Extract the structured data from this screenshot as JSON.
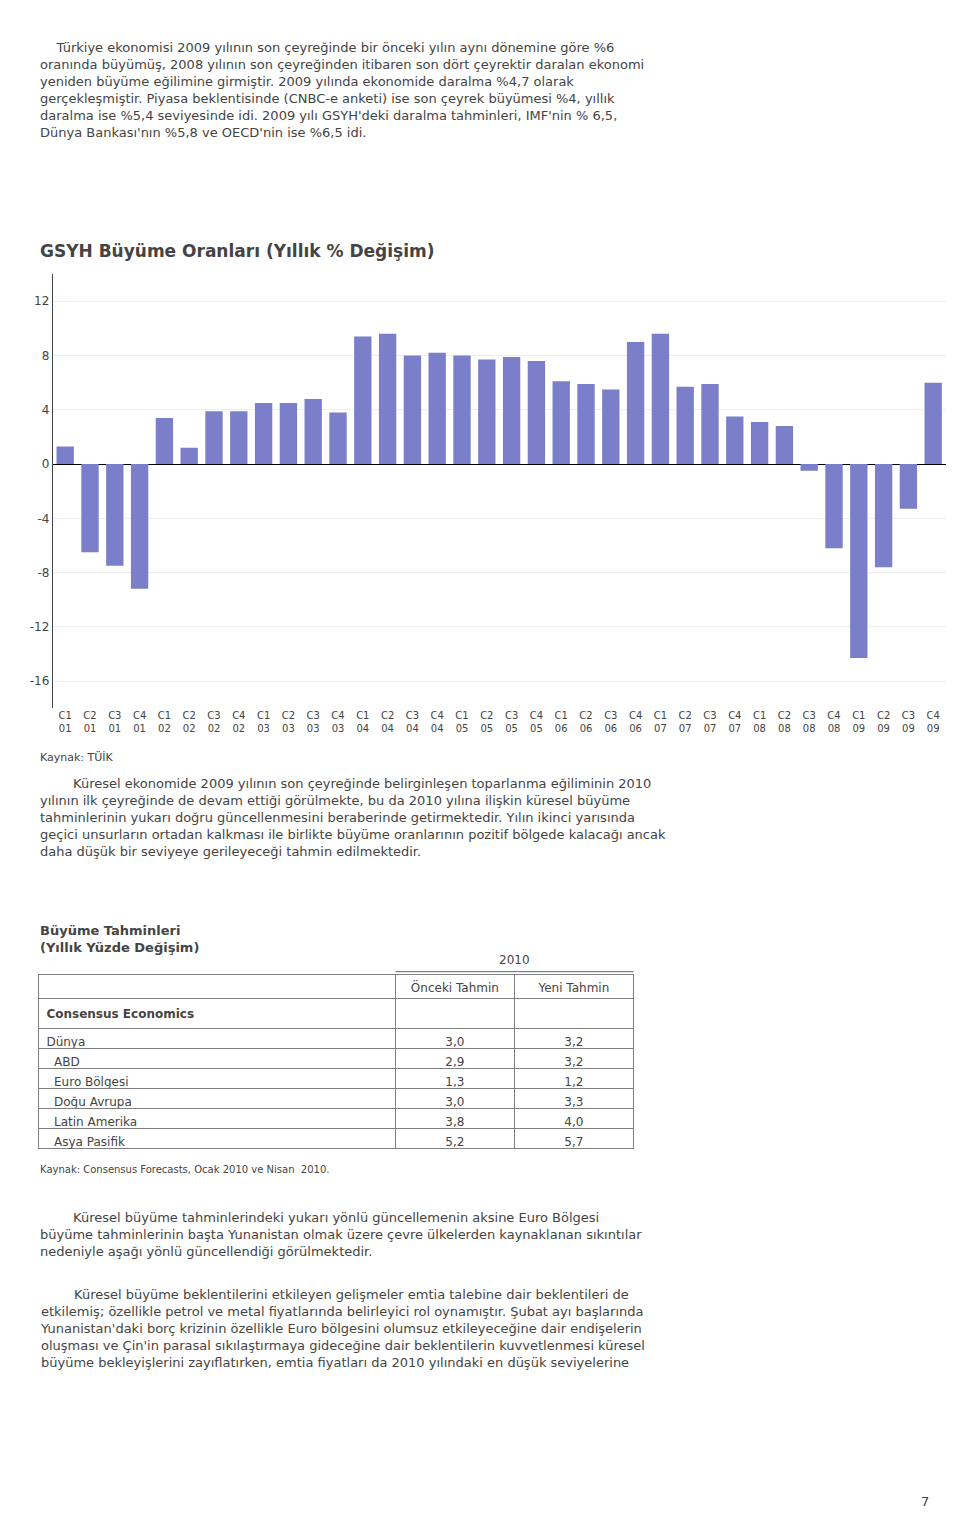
{
  "chart_data": [
    {
      "type": "bar",
      "title": "GSYH Büyüme Oranları (Yıllık % Değişim)",
      "categories": [
        "C1\n01",
        "C2\n01",
        "C3\n01",
        "C4\n01",
        "C1\n02",
        "C2\n02",
        "C3\n02",
        "C4\n02",
        "C1\n03",
        "C2\n03",
        "C3\n03",
        "C4\n03",
        "C1\n04",
        "C2\n04",
        "C3\n04",
        "C4\n04",
        "C1\n05",
        "C2\n05",
        "C3\n05",
        "C4\n05",
        "C1\n06",
        "C2\n06",
        "C3\n06",
        "C4\n06",
        "C1\n07",
        "C2\n07",
        "C3\n07",
        "C4\n07",
        "C1\n08",
        "C2\n08",
        "C3\n08",
        "C4\n08",
        "C1\n09",
        "C2\n09",
        "C3\n09",
        "C4\n09"
      ],
      "values": [
        1.3,
        -6.5,
        -7.5,
        -9.2,
        3.4,
        1.2,
        3.9,
        3.9,
        4.5,
        4.5,
        4.8,
        3.8,
        9.4,
        9.6,
        8.0,
        8.2,
        8.0,
        7.7,
        7.9,
        7.6,
        6.1,
        5.9,
        5.5,
        9.0,
        9.6,
        5.7,
        5.9,
        3.5,
        3.1,
        2.8,
        -0.5,
        -6.2,
        -14.3,
        -7.6,
        -3.3,
        6.0
      ],
      "color": "#7B7EC8",
      "ylim": [
        -18,
        14
      ],
      "yticks": [
        -16,
        -12,
        -8,
        -4,
        0,
        4,
        8,
        12
      ],
      "grid": true,
      "annotations": [
        "    Türkiye ekonomisi 2009 yılının son çeyreğinde bir önceki yılın aynı dönemine göre %6\noranında büyümüş, 2008 yılının son çeyreğinden itibaren son dört çeyrektir daralan ekonomi\nyeniden büyüme eğilimine girmiştir. 2009 yılında ekonomide daralma %4,7 olarak\ngerçekleşmiştir. Piyasa beklentisinde (CNBC-e anketi) ise son çeyrek büyümesi %4, yıllık\ndaralma ise %5,4 seviyesinde idi. 2009 yılı GSYH'deki daralma tahminleri, IMF'nin % 6,5,\nDünya Bankası'nın %5,8 ve OECD'nin ise %6,5 idi.",
        "Kaynak: TÜİK",
        "        Küresel ekonomide 2009 yılının son çeyreğinde belirginleşen toparlanma eğiliminin 2010\nyılının ilk çeyreğinde de devam ettiği görülmekte, bu da 2010 yılına ilişkin küresel büyüme\ntahminlerinin yukarı doğru güncellenmesini beraberinde getirmektedir. Yılın ikinci yarısında\ngeçici unsurların ortadan kalkması ile birlikte büyüme oranlarının pozitif bölgede kalacağı ancak\ndaha düşük bir seviyeye gerileyeceği tahmin edilmektedir."
      ]
    },
    {
      "type": "table",
      "title": "Büyüme Tahminleri\n(Yıllık Yüzde Değişim)",
      "header": "2010",
      "group": "Consensus Economics",
      "categories": [
        "Dünya",
        "  ABD",
        "  Euro Bölgesi",
        "  Doğu Avrupa",
        "  Latin Amerika",
        "  Asya Pasifik"
      ],
      "series": [
        {
          "name": "Önceki Tahmin",
          "values": [
            3.0,
            2.9,
            1.3,
            3.0,
            3.8,
            5.2
          ],
          "value_labels": [
            "3,0",
            "2,9",
            "1,3",
            "3,0",
            "3,8",
            "5,2"
          ]
        },
        {
          "name": "Yeni Tahmin",
          "values": [
            3.2,
            3.2,
            1.2,
            3.3,
            4.0,
            5.7
          ],
          "value_labels": [
            "3,2",
            "3,2",
            "1,2",
            "3,3",
            "4,0",
            "5,7"
          ]
        }
      ],
      "annotations": [
        "Kaynak: Consensus Forecasts, Ocak 2010 ve Nisan  2010.",
        "        Küresel büyüme tahminlerindeki yukarı yönlü güncellemenin aksine Euro Bölgesi\nbüyüme tahminlerinin başta Yunanistan olmak üzere çevre ülkelerden kaynaklanan sıkıntılar\nnedeniyle aşağı yönlü güncellendiği görülmektedir.",
        "        Küresel büyüme beklentilerini etkileyen gelişmeler emtia talebine dair beklentileri de\netkilemiş; özellikle petrol ve metal fiyatlarında belirleyici rol oynamıştır. Şubat ayı başlarında\nYunanistan'daki borç krizinin özellikle Euro bölgesini olumsuz etkileyeceğine dair endişelerin\noluşması ve Çin'in parasal sıkılaştırmaya gideceğine dair beklentilerin kuvvetlenmesi küresel\nbüyüme bekleyişlerini zayıflatırken, emtia fiyatları da 2010 yılındaki en düşük seviyelerine",
        "7"
      ]
    }
  ]
}
